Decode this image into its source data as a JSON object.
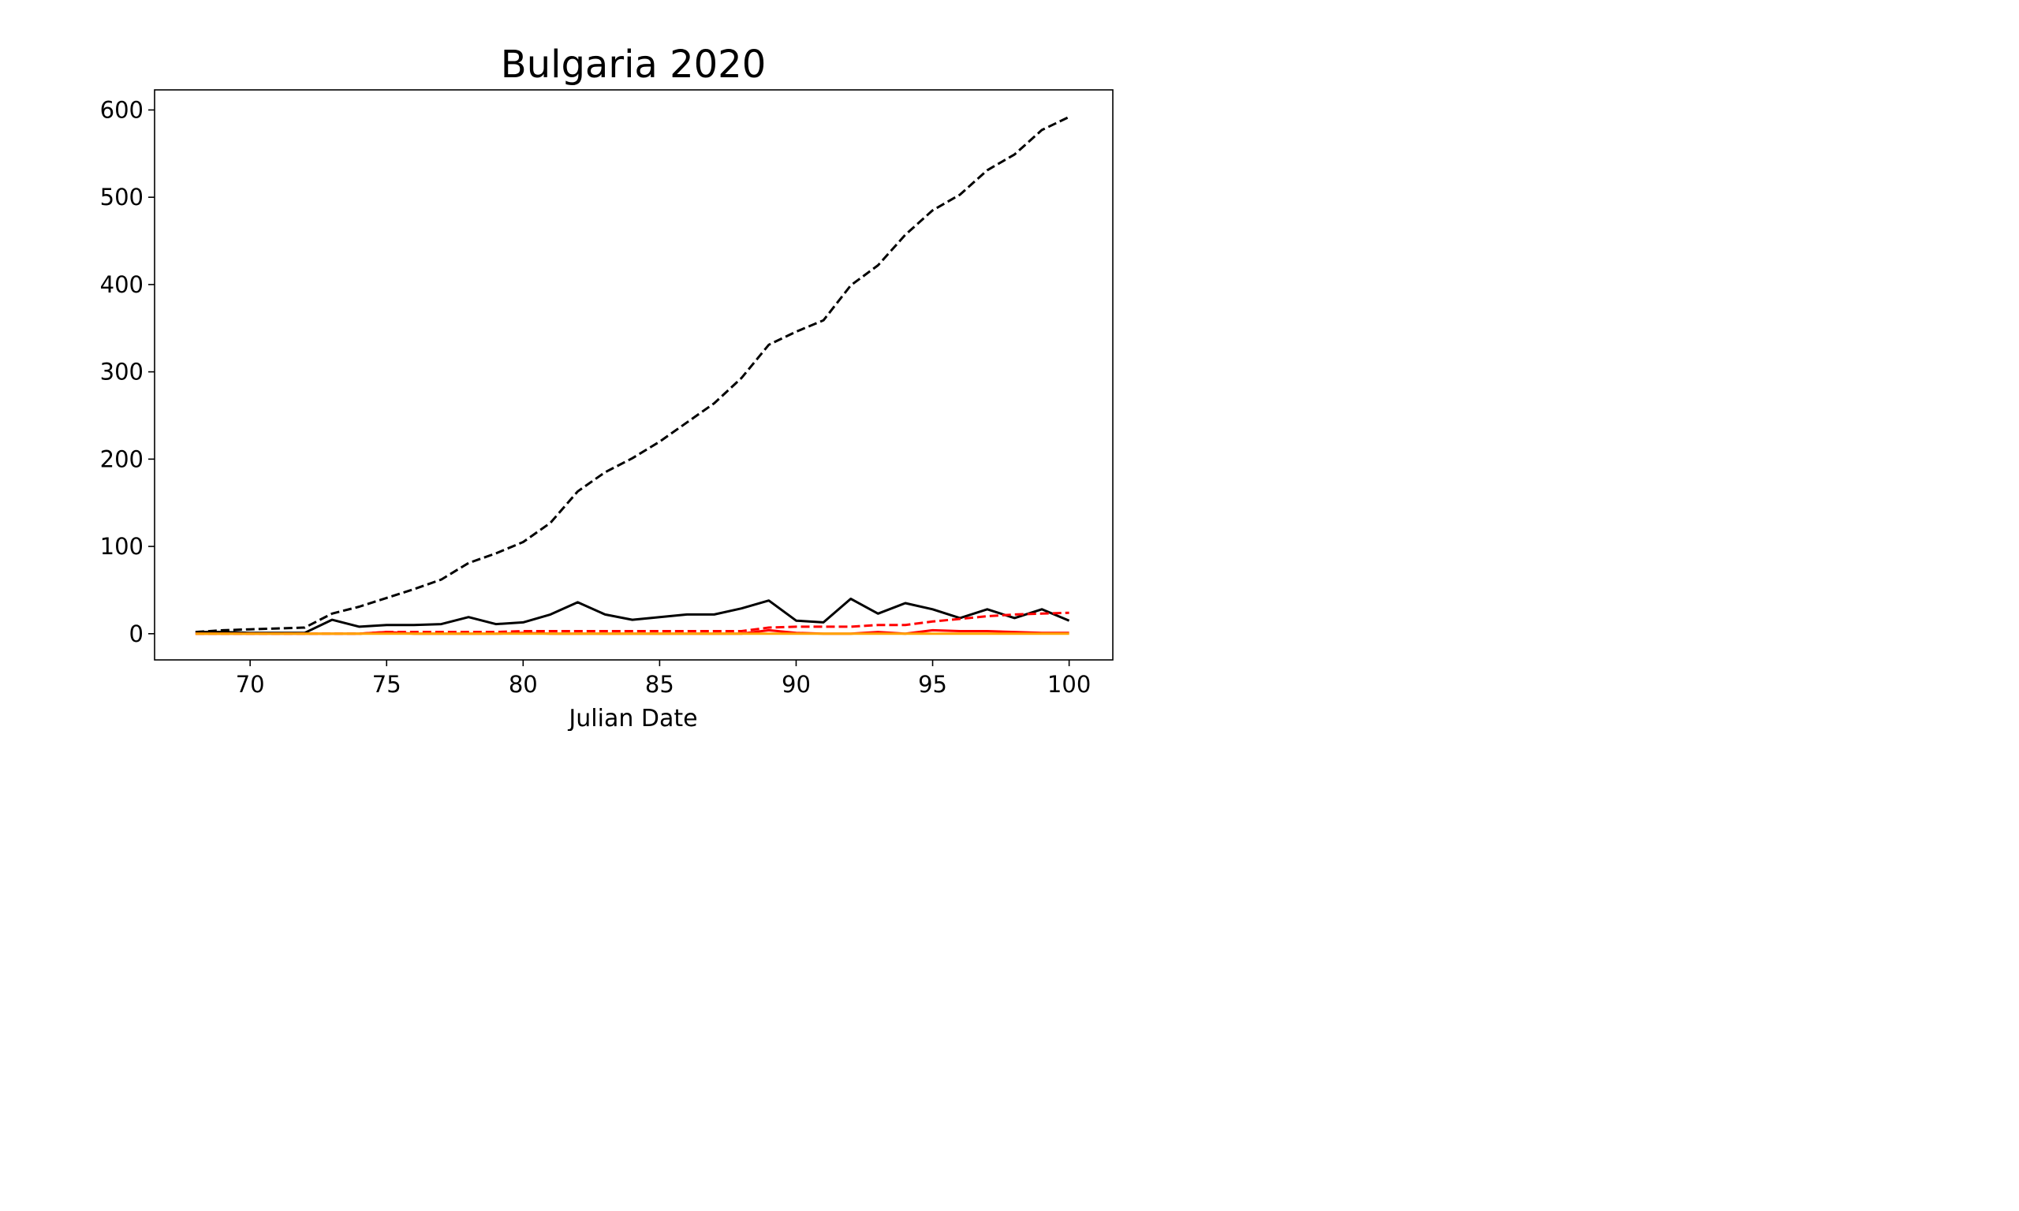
{
  "chart_data": {
    "type": "line",
    "title": "Bulgaria 2020",
    "xlabel": "Julian Date",
    "ylabel": "",
    "xlim": [
      66.5,
      101.6
    ],
    "ylim": [
      -30,
      623
    ],
    "xticks": [
      70,
      75,
      80,
      85,
      90,
      95,
      100
    ],
    "yticks": [
      0,
      100,
      200,
      300,
      400,
      500,
      600
    ],
    "grid": false,
    "x": [
      68,
      69,
      70,
      71,
      72,
      73,
      74,
      75,
      76,
      77,
      78,
      79,
      80,
      81,
      82,
      83,
      84,
      85,
      86,
      87,
      88,
      89,
      90,
      91,
      92,
      93,
      94,
      95,
      96,
      97,
      98,
      99,
      100
    ],
    "series": [
      {
        "color": "#000000",
        "dashed": true,
        "values": [
          2,
          4,
          5,
          6,
          7,
          23,
          31,
          41,
          51,
          62,
          81,
          92,
          105,
          127,
          163,
          185,
          201,
          220,
          242,
          264,
          293,
          331,
          346,
          359,
          399,
          422,
          457,
          485,
          503,
          531,
          549,
          577,
          592
        ]
      },
      {
        "color": "#000000",
        "dashed": false,
        "values": [
          2,
          2,
          1,
          1,
          1,
          16,
          8,
          10,
          10,
          11,
          19,
          11,
          13,
          22,
          36,
          22,
          16,
          19,
          22,
          22,
          29,
          38,
          15,
          13,
          40,
          23,
          35,
          28,
          18,
          28,
          18,
          28,
          15
        ]
      },
      {
        "color": "#ff0000",
        "dashed": true,
        "values": [
          0,
          0,
          0,
          0,
          0,
          0,
          0,
          2,
          2,
          2,
          2,
          2,
          3,
          3,
          3,
          3,
          3,
          3,
          3,
          3,
          3,
          7,
          8,
          8,
          8,
          10,
          10,
          14,
          17,
          20,
          22,
          23,
          24
        ]
      },
      {
        "color": "#ff0000",
        "dashed": false,
        "values": [
          0,
          0,
          0,
          0,
          0,
          0,
          0,
          2,
          0,
          0,
          0,
          0,
          1,
          0,
          0,
          0,
          0,
          0,
          0,
          0,
          0,
          4,
          1,
          0,
          0,
          2,
          0,
          4,
          3,
          3,
          2,
          1,
          1
        ]
      },
      {
        "color": "#ffa500",
        "dashed": false,
        "values": [
          0,
          0,
          0,
          0,
          0,
          0,
          0,
          0,
          0,
          0,
          0,
          0,
          0,
          0,
          0,
          0,
          0,
          0,
          0,
          0,
          0,
          0,
          0,
          0,
          0,
          0,
          0,
          0,
          0,
          0,
          0,
          0,
          0
        ]
      }
    ]
  }
}
